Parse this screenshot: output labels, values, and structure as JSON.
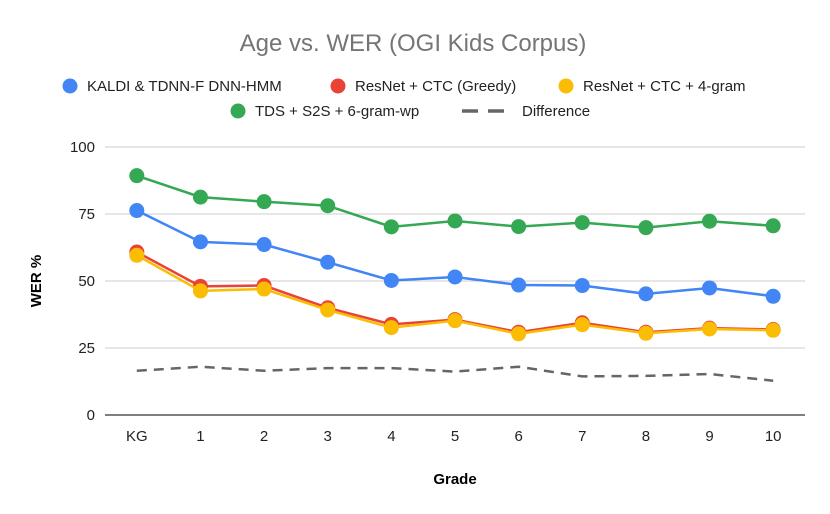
{
  "chart_data": {
    "type": "line",
    "title": "Age vs. WER (OGI Kids Corpus)",
    "xlabel": "Grade",
    "ylabel": "WER %",
    "categories": [
      "KG",
      "1",
      "2",
      "3",
      "4",
      "5",
      "6",
      "7",
      "8",
      "9",
      "10"
    ],
    "ylim": [
      0,
      100
    ],
    "yticks": [
      0,
      25,
      50,
      75,
      100
    ],
    "grid": true,
    "legend_position": "top",
    "series": [
      {
        "name": "KALDI & TDNN-F DNN-HMM",
        "color": "#4285f4",
        "style": "solid-marker",
        "values": [
          76.3,
          64.6,
          63.6,
          57.0,
          50.2,
          51.5,
          48.5,
          48.3,
          45.2,
          47.4,
          44.3
        ]
      },
      {
        "name": "ResNet + CTC (Greedy)",
        "color": "#ea4335",
        "style": "solid-marker",
        "values": [
          60.8,
          48.0,
          48.3,
          40.0,
          33.8,
          35.6,
          30.9,
          34.4,
          30.9,
          32.4,
          31.9
        ]
      },
      {
        "name": "ResNet + CTC + 4-gram",
        "color": "#fbbc04",
        "style": "solid-marker",
        "values": [
          59.6,
          46.3,
          47.0,
          39.2,
          32.6,
          35.2,
          30.3,
          33.7,
          30.5,
          32.1,
          31.6
        ]
      },
      {
        "name": "TDS + S2S + 6-gram-wp",
        "color": "#34a853",
        "style": "solid-marker",
        "values": [
          89.3,
          81.3,
          79.6,
          78.1,
          70.2,
          72.4,
          70.3,
          71.8,
          69.9,
          72.3,
          70.6
        ]
      },
      {
        "name": "Difference",
        "color": "#666666",
        "style": "dashed",
        "values": [
          16.5,
          18.0,
          16.5,
          17.5,
          17.5,
          16.2,
          18.0,
          14.4,
          14.6,
          15.3,
          12.8
        ]
      }
    ]
  }
}
